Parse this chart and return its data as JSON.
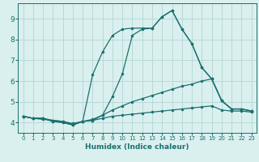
{
  "background_color": "#daf0ee",
  "grid_color": "#b8d8d8",
  "line_color": "#1a7070",
  "xlabel": "Humidex (Indice chaleur)",
  "xlim": [
    -0.5,
    23.5
  ],
  "ylim": [
    3.5,
    9.75
  ],
  "yticks": [
    4,
    5,
    6,
    7,
    8,
    9
  ],
  "xticks": [
    0,
    1,
    2,
    3,
    4,
    5,
    6,
    7,
    8,
    9,
    10,
    11,
    12,
    13,
    14,
    15,
    16,
    17,
    18,
    19,
    20,
    21,
    22,
    23
  ],
  "curves": [
    {
      "x": [
        0,
        1,
        2,
        3,
        4,
        5,
        6,
        7,
        8,
        9,
        10,
        11,
        12,
        13,
        14,
        15,
        16,
        17,
        18,
        19,
        20,
        21,
        22,
        23
      ],
      "y": [
        4.3,
        4.2,
        4.15,
        4.1,
        4.05,
        3.95,
        4.05,
        4.1,
        4.2,
        4.3,
        4.35,
        4.4,
        4.45,
        4.5,
        4.55,
        4.6,
        4.65,
        4.7,
        4.75,
        4.8,
        4.6,
        4.55,
        4.55,
        4.5
      ]
    },
    {
      "x": [
        0,
        1,
        2,
        3,
        4,
        5,
        6,
        7,
        8,
        9,
        10,
        11,
        12,
        13,
        14,
        15,
        16,
        17,
        18,
        19,
        20,
        21,
        22,
        23
      ],
      "y": [
        4.3,
        4.2,
        4.2,
        4.1,
        4.05,
        3.9,
        4.05,
        4.15,
        4.35,
        4.6,
        4.8,
        5.0,
        5.15,
        5.3,
        5.45,
        5.6,
        5.75,
        5.85,
        6.0,
        6.1,
        5.05,
        4.65,
        4.65,
        4.55
      ]
    },
    {
      "x": [
        0,
        1,
        2,
        3,
        4,
        5,
        6,
        7,
        8,
        9,
        10,
        11,
        12,
        13,
        14,
        15,
        16,
        17,
        18,
        19,
        20,
        21,
        22,
        23
      ],
      "y": [
        4.3,
        4.2,
        4.2,
        4.05,
        4.0,
        3.88,
        4.05,
        6.3,
        7.4,
        8.2,
        8.5,
        8.55,
        8.55,
        8.55,
        9.1,
        9.4,
        8.5,
        7.8,
        6.65,
        6.1,
        5.05,
        4.65,
        4.65,
        4.55
      ]
    },
    {
      "x": [
        0,
        1,
        2,
        3,
        4,
        5,
        6,
        7,
        8,
        9,
        10,
        11,
        12,
        13,
        14,
        15,
        16,
        17,
        18,
        19,
        20,
        21,
        22,
        23
      ],
      "y": [
        4.3,
        4.2,
        4.2,
        4.05,
        4.0,
        3.88,
        4.05,
        4.1,
        4.35,
        5.25,
        6.35,
        8.2,
        8.5,
        8.55,
        9.1,
        9.4,
        8.5,
        7.8,
        6.65,
        6.1,
        5.05,
        4.65,
        4.65,
        4.55
      ]
    }
  ]
}
